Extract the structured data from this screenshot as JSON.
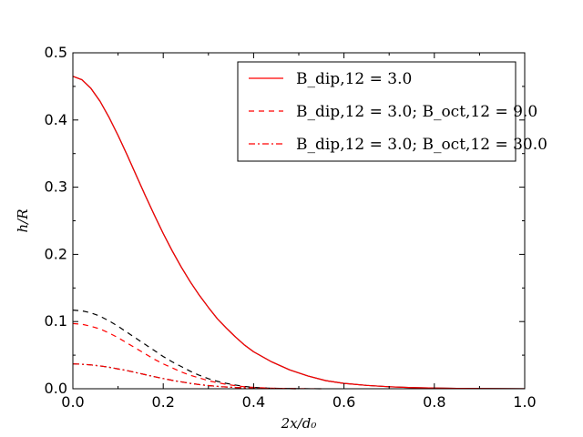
{
  "chart_data": {
    "type": "line",
    "xlabel": "2x/d₀",
    "ylabel": "h/R",
    "xlim": [
      0.0,
      1.0
    ],
    "ylim": [
      0.0,
      0.5
    ],
    "x_ticks": [
      "0.0",
      "0.2",
      "0.4",
      "0.6",
      "0.8",
      "1.0"
    ],
    "y_ticks": [
      "0.0",
      "0.1",
      "0.2",
      "0.3",
      "0.4",
      "0.5"
    ],
    "grid": false,
    "legend_position": "top-right",
    "legend": [
      {
        "label": "B_dip,12 = 3.0",
        "color": "#ff0000",
        "dash": "solid"
      },
      {
        "label": "B_dip,12 = 3.0;  B_oct,12 = 9.0",
        "color": "#ff0000",
        "dash": "dashed"
      },
      {
        "label": "B_dip,12 = 3.0;  B_oct,12 = 30.0",
        "color": "#ff0000",
        "dash": "dashdot"
      }
    ],
    "series": [
      {
        "color": "#000000",
        "dash": "solid",
        "x": [
          0.0,
          0.02,
          0.04,
          0.06,
          0.08,
          0.1,
          0.12,
          0.14,
          0.16,
          0.18,
          0.2,
          0.22,
          0.24,
          0.26,
          0.28,
          0.3,
          0.32,
          0.34,
          0.36,
          0.38,
          0.4,
          0.44,
          0.48,
          0.52,
          0.56,
          0.6,
          0.65,
          0.7,
          0.75,
          0.8,
          0.85,
          0.9,
          0.95,
          1.0
        ],
        "y": [
          0.465,
          0.46,
          0.447,
          0.428,
          0.404,
          0.377,
          0.348,
          0.318,
          0.288,
          0.259,
          0.231,
          0.205,
          0.181,
          0.159,
          0.139,
          0.121,
          0.104,
          0.09,
          0.077,
          0.065,
          0.055,
          0.04,
          0.028,
          0.019,
          0.012,
          0.008,
          0.005,
          0.003,
          0.0017,
          0.001,
          0.0006,
          0.0003,
          0.0002,
          0.0001
        ]
      },
      {
        "color": "#ff0000",
        "dash": "solid",
        "x": [
          0.0,
          0.02,
          0.04,
          0.06,
          0.08,
          0.1,
          0.12,
          0.14,
          0.16,
          0.18,
          0.2,
          0.22,
          0.24,
          0.26,
          0.28,
          0.3,
          0.32,
          0.34,
          0.36,
          0.38,
          0.4,
          0.44,
          0.48,
          0.52,
          0.56,
          0.6,
          0.65,
          0.7,
          0.75,
          0.8,
          0.85,
          0.9,
          0.95,
          1.0
        ],
        "y": [
          0.465,
          0.46,
          0.447,
          0.428,
          0.404,
          0.377,
          0.348,
          0.318,
          0.288,
          0.259,
          0.231,
          0.205,
          0.181,
          0.159,
          0.139,
          0.121,
          0.104,
          0.09,
          0.077,
          0.065,
          0.055,
          0.04,
          0.028,
          0.019,
          0.012,
          0.008,
          0.005,
          0.003,
          0.0017,
          0.001,
          0.0006,
          0.0003,
          0.0002,
          0.0001
        ]
      },
      {
        "color": "#000000",
        "dash": "dashed",
        "x": [
          0.0,
          0.02,
          0.04,
          0.06,
          0.08,
          0.1,
          0.12,
          0.14,
          0.16,
          0.18,
          0.2,
          0.22,
          0.24,
          0.26,
          0.28,
          0.3,
          0.32,
          0.34,
          0.36,
          0.38,
          0.4,
          0.43,
          0.46,
          0.5,
          0.55
        ],
        "y": [
          0.117,
          0.116,
          0.113,
          0.108,
          0.101,
          0.093,
          0.084,
          0.075,
          0.066,
          0.057,
          0.048,
          0.04,
          0.033,
          0.026,
          0.02,
          0.015,
          0.011,
          0.008,
          0.0055,
          0.0035,
          0.002,
          0.001,
          0.0005,
          0.0002,
          0.0
        ]
      },
      {
        "color": "#ff0000",
        "dash": "dashed",
        "x": [
          0.0,
          0.02,
          0.04,
          0.06,
          0.08,
          0.1,
          0.12,
          0.14,
          0.16,
          0.18,
          0.2,
          0.22,
          0.24,
          0.26,
          0.28,
          0.3,
          0.32,
          0.34,
          0.36,
          0.38,
          0.4,
          0.43,
          0.46,
          0.5,
          0.55
        ],
        "y": [
          0.097,
          0.096,
          0.093,
          0.089,
          0.083,
          0.076,
          0.068,
          0.06,
          0.052,
          0.044,
          0.037,
          0.031,
          0.025,
          0.02,
          0.016,
          0.012,
          0.009,
          0.0065,
          0.0045,
          0.003,
          0.002,
          0.001,
          0.0005,
          0.0002,
          0.0
        ]
      },
      {
        "color": "#000000",
        "dash": "dashdot",
        "x": [
          0.0,
          0.02,
          0.04,
          0.06,
          0.08,
          0.1,
          0.12,
          0.14,
          0.16,
          0.18,
          0.2,
          0.22,
          0.24,
          0.26,
          0.28,
          0.3,
          0.33,
          0.36,
          0.4,
          0.45,
          0.5
        ],
        "y": [
          0.037,
          0.0365,
          0.0355,
          0.034,
          0.032,
          0.0295,
          0.027,
          0.024,
          0.021,
          0.018,
          0.0152,
          0.0125,
          0.0102,
          0.008,
          0.0062,
          0.0047,
          0.003,
          0.0018,
          0.0008,
          0.0003,
          0.0
        ]
      },
      {
        "color": "#ff0000",
        "dash": "dashdot",
        "x": [
          0.0,
          0.02,
          0.04,
          0.06,
          0.08,
          0.1,
          0.12,
          0.14,
          0.16,
          0.18,
          0.2,
          0.22,
          0.24,
          0.26,
          0.28,
          0.3,
          0.33,
          0.36,
          0.4,
          0.45,
          0.5
        ],
        "y": [
          0.037,
          0.0365,
          0.0355,
          0.034,
          0.032,
          0.0295,
          0.027,
          0.024,
          0.021,
          0.018,
          0.0152,
          0.0125,
          0.0102,
          0.008,
          0.0062,
          0.0047,
          0.003,
          0.0018,
          0.0008,
          0.0003,
          0.0
        ]
      }
    ]
  }
}
